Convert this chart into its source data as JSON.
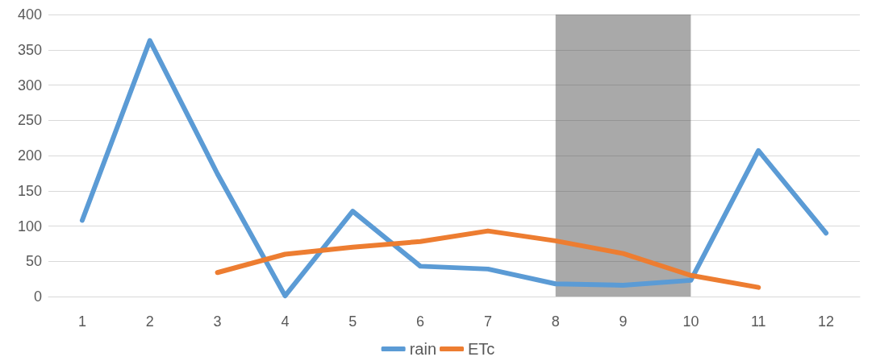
{
  "chart_data": {
    "type": "line",
    "x": [
      1,
      2,
      3,
      4,
      5,
      6,
      7,
      8,
      9,
      10,
      11,
      12
    ],
    "series": [
      {
        "name": "rain",
        "color": "#5b9bd5",
        "values": [
          108,
          363,
          174,
          1,
          121,
          43,
          39,
          18,
          16,
          23,
          207,
          90
        ]
      },
      {
        "name": "ETc",
        "color": "#ed7d31",
        "values": [
          null,
          null,
          34,
          60,
          70,
          78,
          93,
          79,
          61,
          30,
          13,
          null
        ]
      }
    ],
    "xlim": [
      0.5,
      12.5
    ],
    "xticks": [
      1,
      2,
      3,
      4,
      5,
      6,
      7,
      8,
      9,
      10,
      11,
      12
    ],
    "ylim": [
      0,
      400
    ],
    "yticks": [
      0,
      50,
      100,
      150,
      200,
      250,
      300,
      350,
      400
    ],
    "grid": "y",
    "legend": "bottom",
    "marker": "none",
    "line_style": "solid",
    "bands": [
      {
        "axis": "x",
        "from": 8,
        "to": 10,
        "color": "#404040"
      }
    ]
  }
}
